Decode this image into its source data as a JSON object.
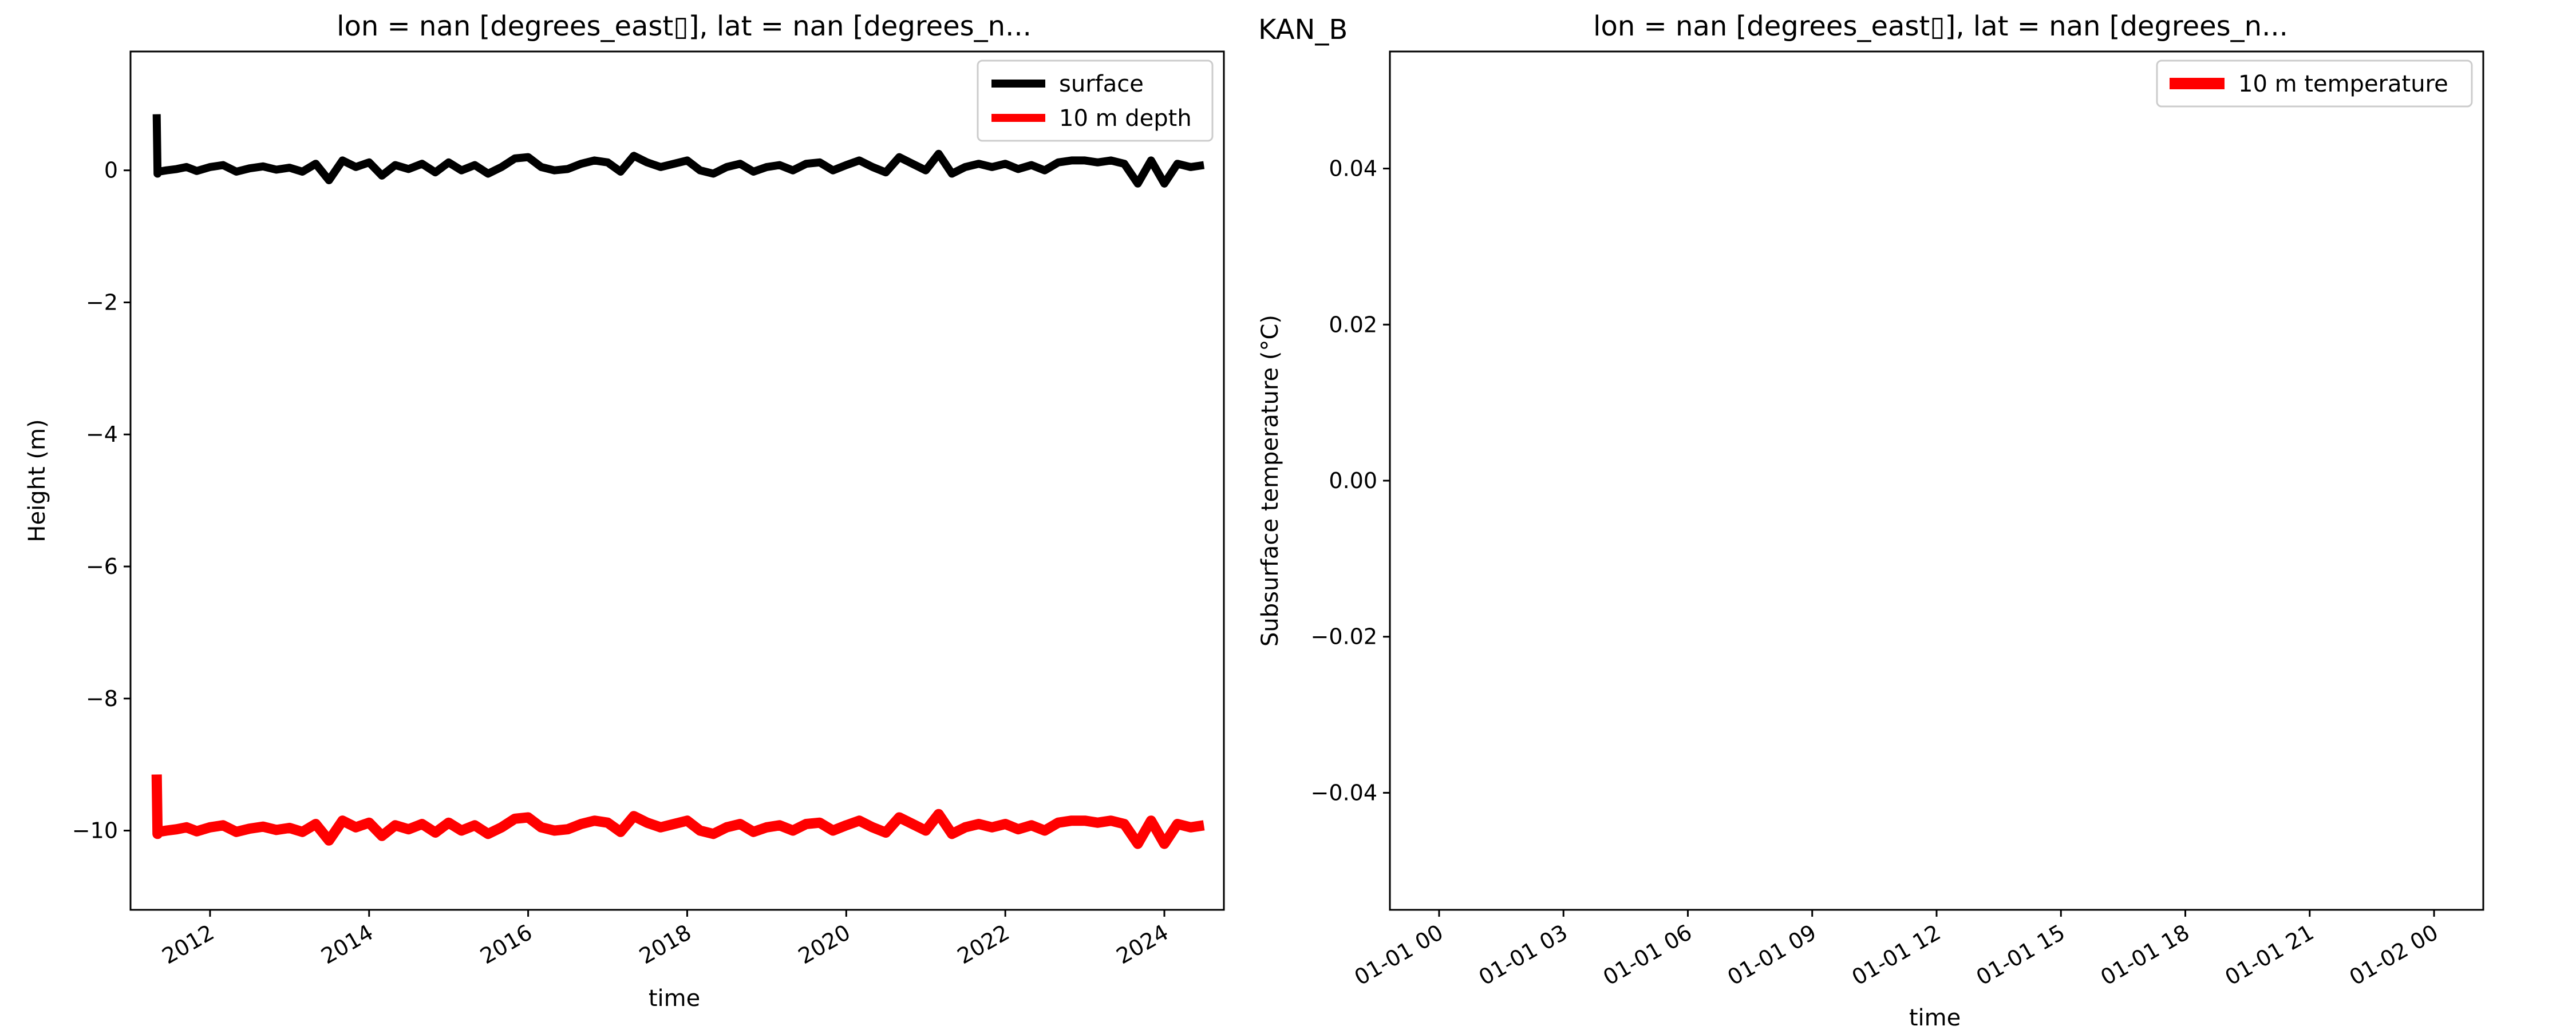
{
  "figure_label": "KAN_B",
  "chart_data": [
    {
      "type": "line",
      "title": "lon = nan [degrees_east▯], lat = nan [degrees_n...",
      "xlabel": "time",
      "ylabel": "Height (m)",
      "xlim": [
        "2011-01-01",
        "2024-10-01"
      ],
      "ylim": [
        -11.2,
        1.8
      ],
      "x_ticks": [
        "2012",
        "2014",
        "2016",
        "2018",
        "2020",
        "2022",
        "2024"
      ],
      "y_ticks": [
        "0",
        "−2",
        "−4",
        "−6",
        "−8",
        "−10"
      ],
      "y_tick_values": [
        0,
        -2,
        -4,
        -6,
        -8,
        -10
      ],
      "legend_position": "top-right",
      "series": [
        {
          "name": "surface",
          "color": "#000000",
          "x": [
            "2011-05-01",
            "2011-05-05",
            "2011-05-10",
            "2011-06-15",
            "2011-08-01",
            "2011-09-15",
            "2011-11-01",
            "2012-01-01",
            "2012-03-01",
            "2012-05-01",
            "2012-07-01",
            "2012-09-01",
            "2012-11-01",
            "2013-01-01",
            "2013-03-01",
            "2013-05-01",
            "2013-07-01",
            "2013-09-01",
            "2013-11-01",
            "2014-01-01",
            "2014-03-01",
            "2014-05-01",
            "2014-07-01",
            "2014-09-01",
            "2014-11-01",
            "2015-01-01",
            "2015-03-01",
            "2015-05-01",
            "2015-07-01",
            "2015-09-01",
            "2015-11-01",
            "2016-01-01",
            "2016-03-01",
            "2016-05-01",
            "2016-07-01",
            "2016-09-01",
            "2016-11-01",
            "2017-01-01",
            "2017-03-01",
            "2017-05-01",
            "2017-07-01",
            "2017-09-01",
            "2017-11-01",
            "2018-01-01",
            "2018-03-01",
            "2018-05-01",
            "2018-07-01",
            "2018-09-01",
            "2018-11-01",
            "2019-01-01",
            "2019-03-01",
            "2019-05-01",
            "2019-07-01",
            "2019-09-01",
            "2019-11-01",
            "2020-01-01",
            "2020-03-01",
            "2020-05-01",
            "2020-07-01",
            "2020-09-01",
            "2020-11-01",
            "2021-01-01",
            "2021-03-01",
            "2021-05-01",
            "2021-07-01",
            "2021-09-01",
            "2021-11-01",
            "2022-01-01",
            "2022-03-01",
            "2022-05-01",
            "2022-07-01",
            "2022-09-01",
            "2022-11-01",
            "2023-01-01",
            "2023-03-01",
            "2023-05-01",
            "2023-07-01",
            "2023-09-01",
            "2023-11-01",
            "2024-01-01",
            "2024-03-01",
            "2024-05-01",
            "2024-07-01"
          ],
          "y": [
            0.85,
            -0.05,
            -0.02,
            0.0,
            0.02,
            0.05,
            -0.01,
            0.05,
            0.08,
            -0.02,
            0.03,
            0.06,
            0.01,
            0.04,
            -0.02,
            0.1,
            -0.15,
            0.15,
            0.05,
            0.12,
            -0.08,
            0.08,
            0.02,
            0.1,
            -0.03,
            0.12,
            0.0,
            0.08,
            -0.05,
            0.05,
            0.18,
            0.2,
            0.05,
            0.0,
            0.02,
            0.1,
            0.15,
            0.12,
            -0.02,
            0.22,
            0.12,
            0.05,
            0.1,
            0.15,
            0.0,
            -0.05,
            0.05,
            0.1,
            -0.02,
            0.05,
            0.08,
            0.0,
            0.1,
            0.12,
            0.0,
            0.08,
            0.15,
            0.05,
            -0.03,
            0.2,
            0.1,
            0.0,
            0.25,
            -0.05,
            0.05,
            0.1,
            0.05,
            0.1,
            0.02,
            0.08,
            0.0,
            0.12,
            0.15,
            0.15,
            0.12,
            0.15,
            0.1,
            -0.2,
            0.15,
            -0.2,
            0.1,
            0.05,
            0.08
          ]
        },
        {
          "name": "10 m depth",
          "color": "#ff0000",
          "x": [
            "2011-05-01",
            "2011-05-05",
            "2011-05-10",
            "2011-06-15",
            "2011-08-01",
            "2011-09-15",
            "2011-11-01",
            "2012-01-01",
            "2012-03-01",
            "2012-05-01",
            "2012-07-01",
            "2012-09-01",
            "2012-11-01",
            "2013-01-01",
            "2013-03-01",
            "2013-05-01",
            "2013-07-01",
            "2013-09-01",
            "2013-11-01",
            "2014-01-01",
            "2014-03-01",
            "2014-05-01",
            "2014-07-01",
            "2014-09-01",
            "2014-11-01",
            "2015-01-01",
            "2015-03-01",
            "2015-05-01",
            "2015-07-01",
            "2015-09-01",
            "2015-11-01",
            "2016-01-01",
            "2016-03-01",
            "2016-05-01",
            "2016-07-01",
            "2016-09-01",
            "2016-11-01",
            "2017-01-01",
            "2017-03-01",
            "2017-05-01",
            "2017-07-01",
            "2017-09-01",
            "2017-11-01",
            "2018-01-01",
            "2018-03-01",
            "2018-05-01",
            "2018-07-01",
            "2018-09-01",
            "2018-11-01",
            "2019-01-01",
            "2019-03-01",
            "2019-05-01",
            "2019-07-01",
            "2019-09-01",
            "2019-11-01",
            "2020-01-01",
            "2020-03-01",
            "2020-05-01",
            "2020-07-01",
            "2020-09-01",
            "2020-11-01",
            "2021-01-01",
            "2021-03-01",
            "2021-05-01",
            "2021-07-01",
            "2021-09-01",
            "2021-11-01",
            "2022-01-01",
            "2022-03-01",
            "2022-05-01",
            "2022-07-01",
            "2022-09-01",
            "2022-11-01",
            "2023-01-01",
            "2023-03-01",
            "2023-05-01",
            "2023-07-01",
            "2023-09-01",
            "2023-11-01",
            "2024-01-01",
            "2024-03-01",
            "2024-05-01",
            "2024-07-01"
          ],
          "y": [
            -9.15,
            -10.05,
            -10.02,
            -10.0,
            -9.98,
            -9.95,
            -10.01,
            -9.95,
            -9.92,
            -10.02,
            -9.97,
            -9.94,
            -9.99,
            -9.96,
            -10.02,
            -9.9,
            -10.15,
            -9.85,
            -9.95,
            -9.88,
            -10.08,
            -9.92,
            -9.98,
            -9.9,
            -10.03,
            -9.88,
            -10.0,
            -9.92,
            -10.05,
            -9.95,
            -9.82,
            -9.8,
            -9.95,
            -10.0,
            -9.98,
            -9.9,
            -9.85,
            -9.88,
            -10.02,
            -9.78,
            -9.88,
            -9.95,
            -9.9,
            -9.85,
            -10.0,
            -10.05,
            -9.95,
            -9.9,
            -10.02,
            -9.95,
            -9.92,
            -10.0,
            -9.9,
            -9.88,
            -10.0,
            -9.92,
            -9.85,
            -9.95,
            -10.03,
            -9.8,
            -9.9,
            -10.0,
            -9.75,
            -10.05,
            -9.95,
            -9.9,
            -9.95,
            -9.9,
            -9.98,
            -9.92,
            -10.0,
            -9.88,
            -9.85,
            -9.85,
            -9.88,
            -9.85,
            -9.9,
            -10.2,
            -9.85,
            -10.2,
            -9.9,
            -9.95,
            -9.92
          ]
        }
      ]
    },
    {
      "type": "line",
      "title": "lon = nan [degrees_east▯], lat = nan [degrees_n...",
      "xlabel": "time",
      "ylabel": "Subsurface temperature (°C)",
      "ylim": [
        -0.055,
        0.055
      ],
      "x_ticks": [
        "01-01 00",
        "01-01 03",
        "01-01 06",
        "01-01 09",
        "01-01 12",
        "01-01 15",
        "01-01 18",
        "01-01 21",
        "01-02 00"
      ],
      "y_ticks": [
        "0.04",
        "0.02",
        "0.00",
        "−0.02",
        "−0.04"
      ],
      "y_tick_values": [
        0.04,
        0.02,
        0.0,
        -0.02,
        -0.04
      ],
      "legend_position": "top-right",
      "series": [
        {
          "name": "10 m temperature",
          "color": "#ff0000",
          "x": [],
          "y": []
        }
      ]
    }
  ]
}
